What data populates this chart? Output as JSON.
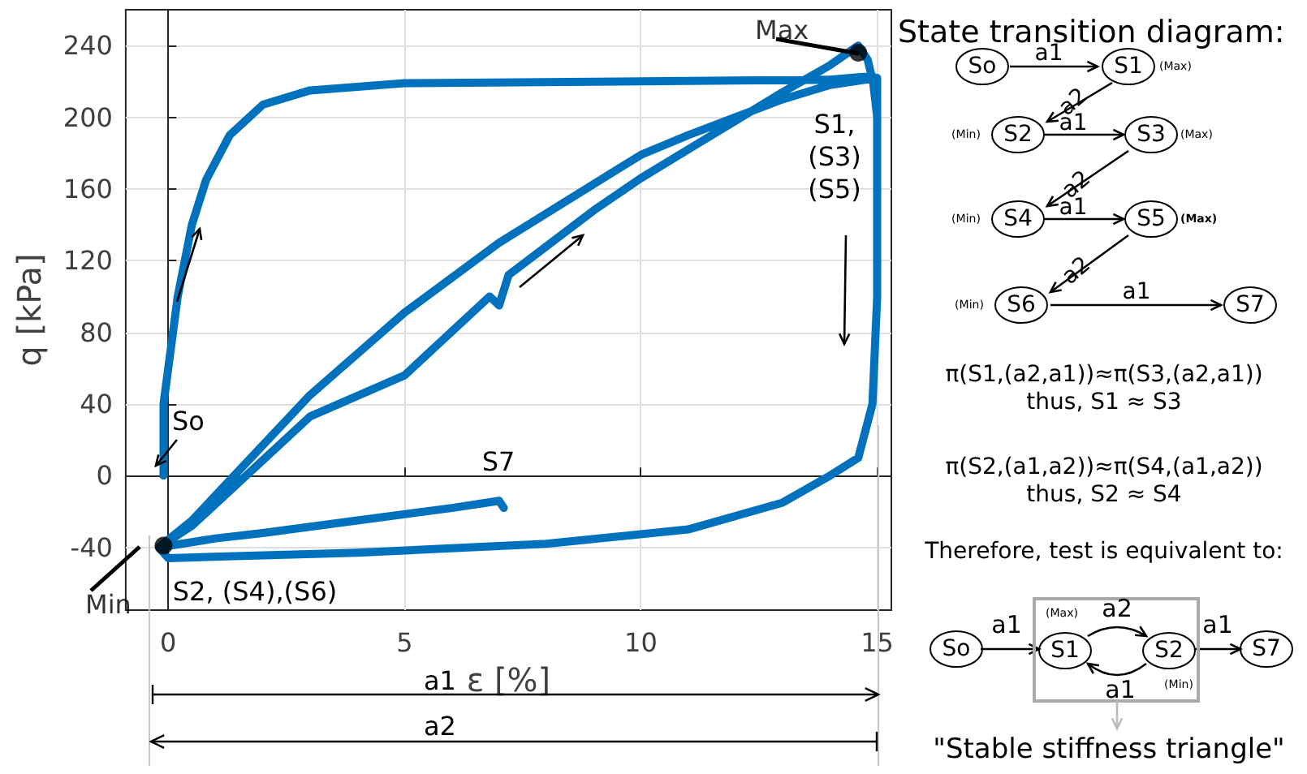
{
  "chart_data": {
    "type": "line",
    "xlabel": "ε [%]",
    "ylabel": "q [kPa]",
    "xlim": [
      -0.9,
      15.3
    ],
    "ylim": [
      -75,
      260
    ],
    "xticks": [
      0,
      5,
      10,
      15
    ],
    "yticks": [
      -40,
      0,
      40,
      80,
      120,
      160,
      200,
      240
    ],
    "grid": true,
    "line_style": "solid",
    "series": [
      {
        "marker": "none",
        "color": "#0072bd",
        "x": [
          -0.1,
          -0.1,
          0.2,
          0.5,
          0.8,
          1.3,
          2,
          3,
          5,
          10,
          14,
          14.9,
          15,
          15,
          14.9,
          14.6,
          14,
          13,
          11,
          8,
          4,
          0,
          -0.2,
          0.5,
          3,
          5,
          7,
          10,
          11,
          12,
          13,
          14,
          15,
          15,
          15,
          14.9,
          14.6,
          14,
          13,
          11,
          8,
          4,
          0,
          -0.2,
          0.5,
          3,
          5,
          6.8,
          7,
          7.2,
          9,
          10,
          11,
          12,
          13,
          14,
          14.6,
          14.8,
          15,
          15,
          14.9,
          14.6,
          14,
          13,
          11,
          8,
          4,
          0,
          -0.2,
          1,
          2,
          4,
          6,
          7,
          7.1
        ],
        "values": [
          0,
          40,
          100,
          140,
          165,
          190,
          207,
          215,
          219,
          220,
          221,
          223,
          200,
          100,
          40,
          10,
          0,
          -15,
          -30,
          -38,
          -43,
          -46,
          -40,
          -25,
          45,
          91,
          130,
          179,
          190,
          200,
          210,
          218,
          222,
          200,
          100,
          40,
          10,
          0,
          -15,
          -30,
          -38,
          -43,
          -46,
          -40,
          -28,
          33,
          56,
          100,
          95,
          112,
          148,
          166,
          182,
          198,
          214,
          229,
          240,
          232,
          210,
          100,
          40,
          10,
          0,
          -15,
          -30,
          -38,
          -43,
          -46,
          -40,
          -35,
          -32,
          -25,
          -18,
          -14,
          -18
        ]
      },
      {
        "type": "scatter",
        "color": "#000000",
        "x": [
          14.6,
          -0.1
        ],
        "values": [
          236,
          -39
        ],
        "value_labels": [
          "Max",
          "Min"
        ]
      }
    ],
    "annotations": [
      "So",
      "S1,\n(S3)\n(S5)",
      "S7",
      "S2, (S4),(S6)",
      "State transition diagram:",
      "So",
      "a1",
      "S1",
      "(Max)",
      "a2",
      "(Min)",
      "S2",
      "a1",
      "S3",
      "(Max)",
      "a2",
      "(Min)",
      "S4",
      "a1",
      "S5",
      "(Max)",
      "a2",
      "(Min)",
      "S6",
      "a1",
      "S7",
      "π(S1,(a2,a1))≈π(S3,(a2,a1))",
      "thus, S1 ≈ S3",
      "π(S2,(a1,a2))≈π(S4,(a1,a2))",
      "thus, S2 ≈ S4",
      "Therefore, test is equivalent to:",
      "So",
      "a1",
      "(Max)",
      "S1",
      "a2",
      "S2",
      "a1",
      "(Min)",
      "a1",
      "S7",
      "\"Stable stiffness triangle\"",
      "a1",
      "a2"
    ]
  }
}
